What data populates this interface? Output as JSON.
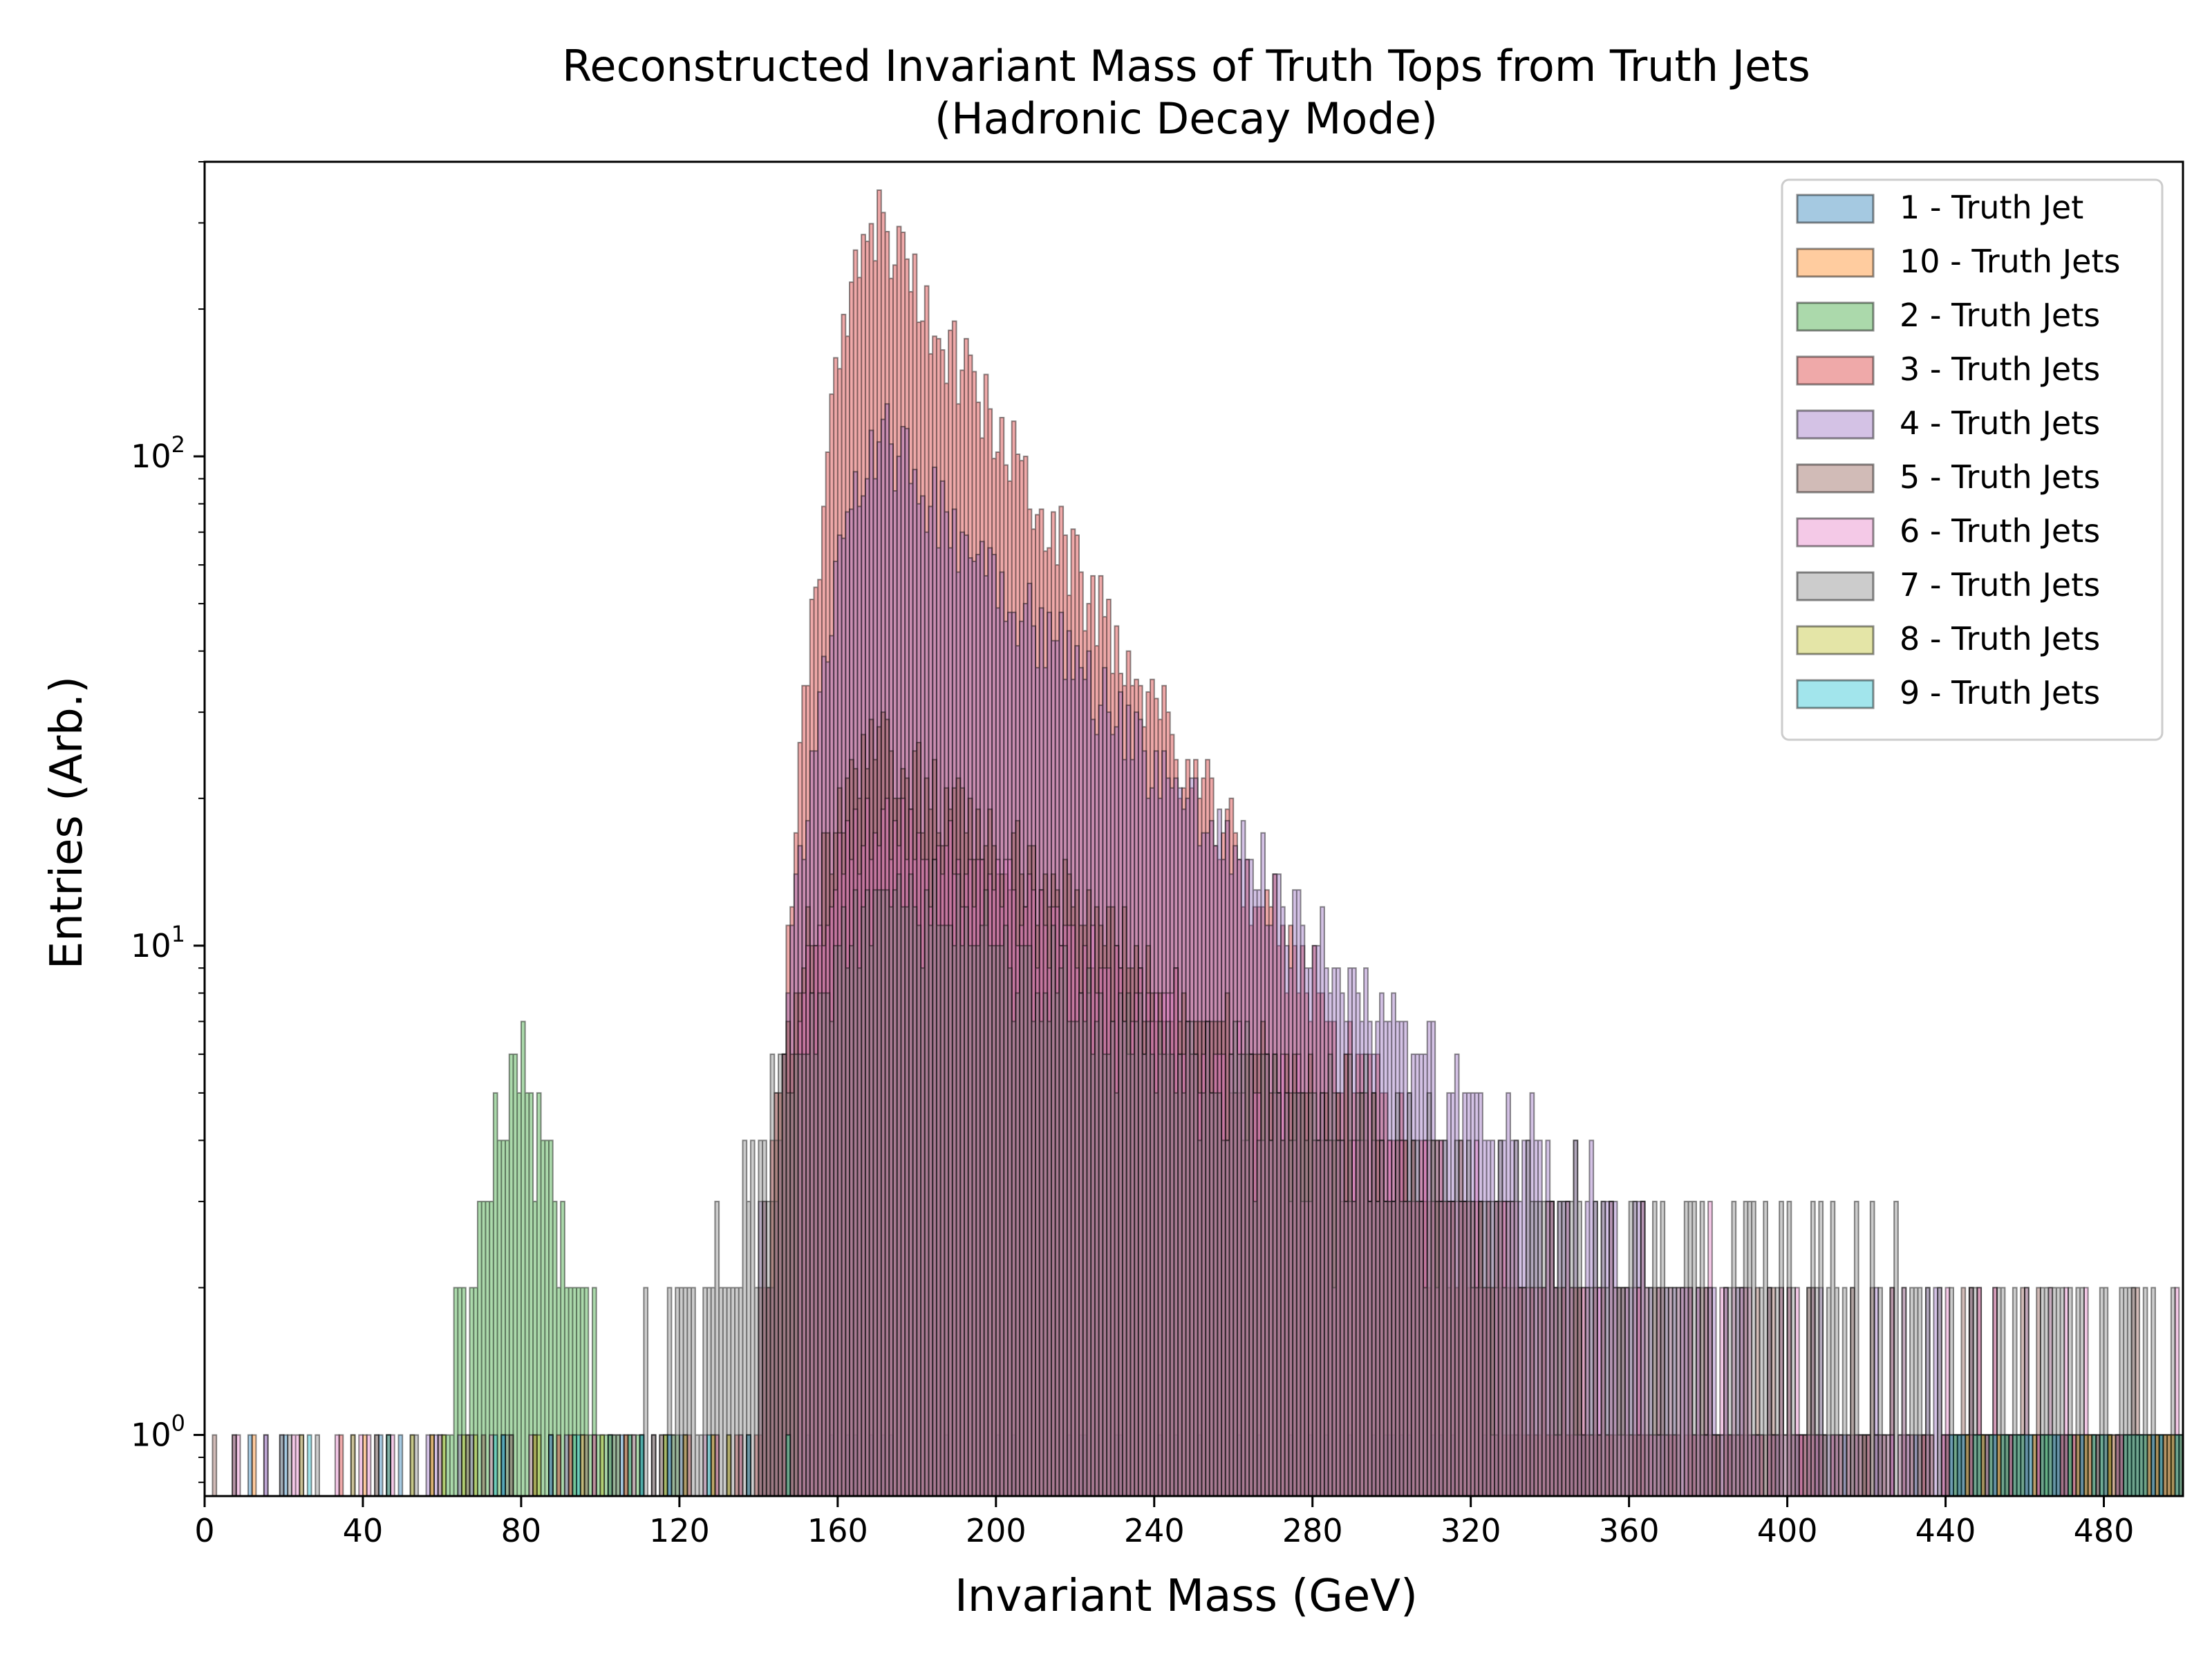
{
  "chart_data": {
    "type": "histogram",
    "title": "Reconstructed Invariant Mass of Truth Tops from Truth Jets",
    "subtitle": "(Hadronic Decay Mode)",
    "xlabel": "Invariant Mass (GeV)",
    "ylabel": "Entries (Arb.)",
    "xlim": [
      0,
      500
    ],
    "ylim": [
      0.75,
      400
    ],
    "yscale": "log",
    "x_ticks": [
      "0",
      "40",
      "80",
      "120",
      "160",
      "200",
      "240",
      "280",
      "320",
      "360",
      "400",
      "440",
      "480"
    ],
    "y_ticks": [
      {
        "base": "10",
        "exp": "0",
        "value": 1
      },
      {
        "base": "10",
        "exp": "1",
        "value": 10
      },
      {
        "base": "10",
        "exp": "2",
        "value": 100
      }
    ],
    "grid": false,
    "legend_position": "top-right",
    "bin_width_gev": 1,
    "series": [
      {
        "name": "1 - Truth Jet",
        "color": "#1f77b4",
        "peak": 0,
        "peak_value": 0,
        "spread": 0,
        "tail": 0,
        "low": 0,
        "lowmax": 0,
        "bg": 1.2,
        "start": 5
      },
      {
        "name": "10 - Truth Jets",
        "color": "#ff7f0e",
        "peak": 0,
        "peak_value": 0,
        "spread": 0,
        "tail": 0,
        "low": 0,
        "lowmax": 0,
        "bg": 1.0,
        "start": 60
      },
      {
        "name": "2 - Truth Jets",
        "color": "#2ca02c",
        "peak": 0,
        "peak_value": 0,
        "spread": 0,
        "tail": 0,
        "low": 80,
        "lowmax": 6,
        "bg": 1.0,
        "start": 20
      },
      {
        "name": "3 - Truth Jets",
        "color": "#d62728",
        "peak": 171,
        "peak_value": 300,
        "spread": 9,
        "tail": 30,
        "low": 0,
        "lowmax": 0,
        "bg": 1.5,
        "start": 120
      },
      {
        "name": "4 - Truth Jets",
        "color": "#9467bd",
        "peak": 171,
        "peak_value": 110,
        "spread": 10,
        "tail": 45,
        "low": 0,
        "lowmax": 0,
        "bg": 2,
        "start": 140
      },
      {
        "name": "5 - Truth Jets",
        "color": "#8c564b",
        "peak": 172,
        "peak_value": 25,
        "spread": 14,
        "tail": 60,
        "low": 0,
        "lowmax": 0,
        "bg": 2,
        "start": 140
      },
      {
        "name": "6 - Truth Jets",
        "color": "#e377c2",
        "peak": 172,
        "peak_value": 18,
        "spread": 16,
        "tail": 70,
        "low": 0,
        "lowmax": 0,
        "bg": 2,
        "start": 150
      },
      {
        "name": "7 - Truth Jets",
        "color": "#7f7f7f",
        "peak": 175,
        "peak_value": 12,
        "spread": 20,
        "tail": 90,
        "low": 0,
        "lowmax": 0,
        "bg": 2.5,
        "start": 100
      },
      {
        "name": "8 - Truth Jets",
        "color": "#bcbd22",
        "peak": 0,
        "peak_value": 0,
        "spread": 0,
        "tail": 0,
        "low": 0,
        "lowmax": 0,
        "bg": 1.0,
        "start": 150
      },
      {
        "name": "9 - Truth Jets",
        "color": "#17becf",
        "peak": 0,
        "peak_value": 0,
        "spread": 0,
        "tail": 0,
        "low": 0,
        "lowmax": 0,
        "bg": 1.0,
        "start": 150
      }
    ]
  }
}
